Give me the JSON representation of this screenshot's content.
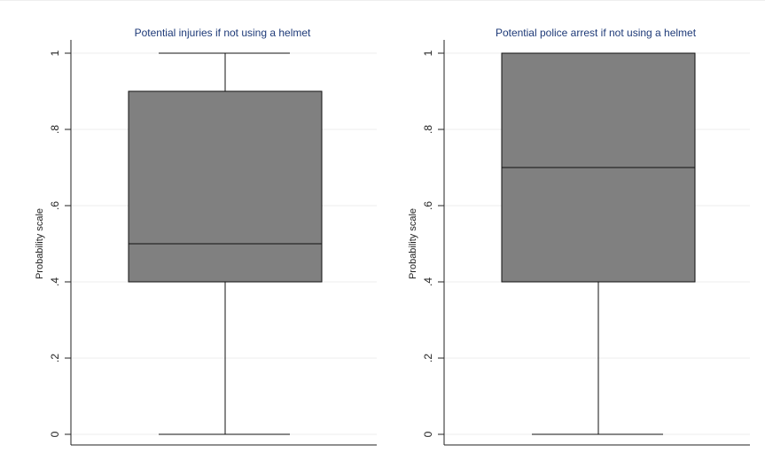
{
  "chart_data": [
    {
      "type": "box",
      "title": "Potential injuries if not using a helmet",
      "ylabel": "Probability scale",
      "ylim": [
        0,
        1
      ],
      "yticks": [
        0,
        0.2,
        0.4,
        0.6,
        0.8,
        1
      ],
      "ytick_labels": [
        "0",
        ".2",
        ".4",
        ".6",
        ".8",
        "1"
      ],
      "grid": true,
      "box_color": "#808080",
      "stats": {
        "min": 0,
        "q1": 0.4,
        "median": 0.5,
        "q3": 0.9,
        "max": 1
      }
    },
    {
      "type": "box",
      "title": "Potential police arrest if not using a helmet",
      "ylabel": "Probability scale",
      "ylim": [
        0,
        1
      ],
      "yticks": [
        0,
        0.2,
        0.4,
        0.6,
        0.8,
        1
      ],
      "ytick_labels": [
        "0",
        ".2",
        ".4",
        ".6",
        ".8",
        "1"
      ],
      "grid": true,
      "box_color": "#808080",
      "stats": {
        "min": 0,
        "q1": 0.4,
        "median": 0.7,
        "q3": 1,
        "max": 1
      }
    }
  ]
}
